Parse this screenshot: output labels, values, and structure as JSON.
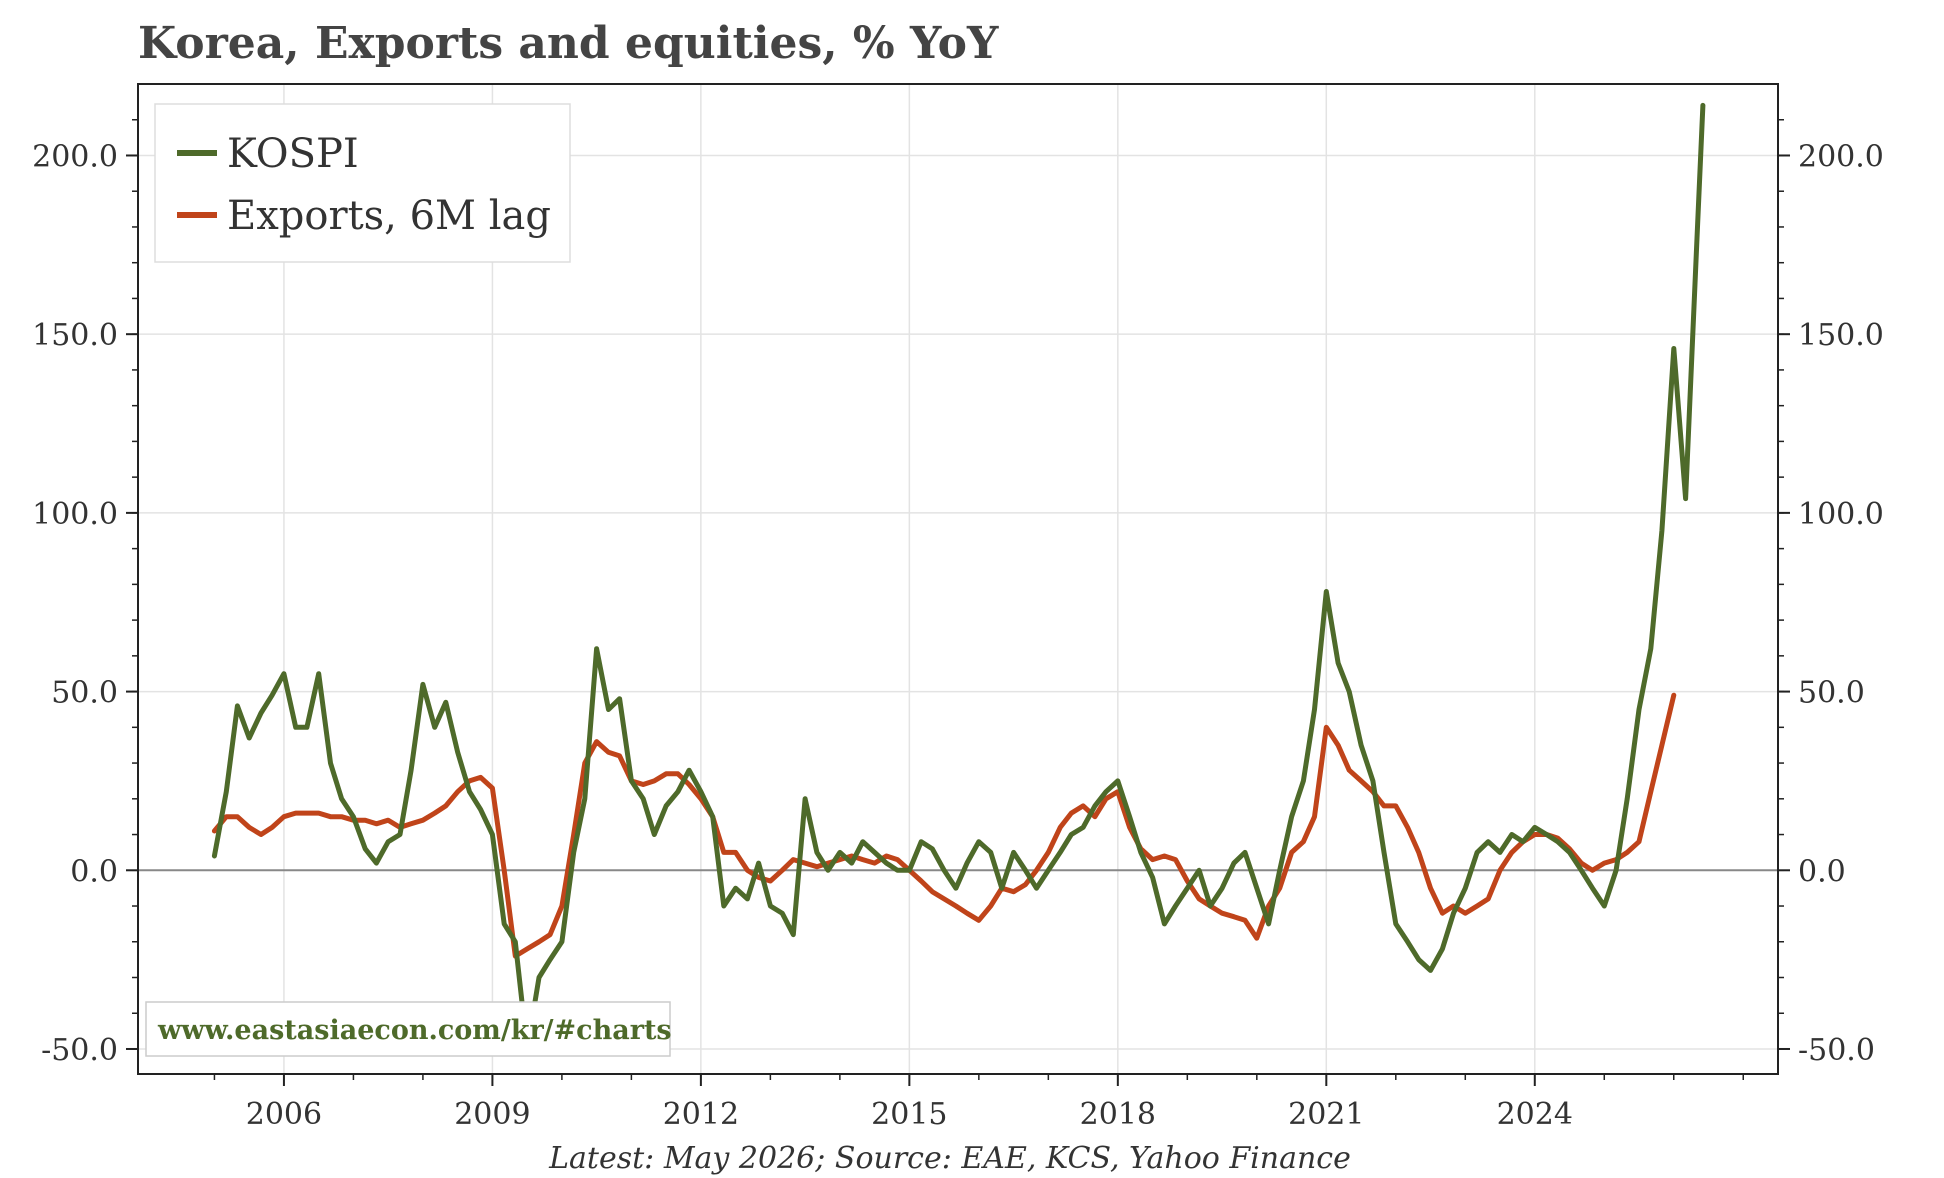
{
  "chart_data": {
    "type": "line",
    "title": "Korea, Exports and equities, % YoY",
    "source_note": "Latest: May 2026; Source: EAE, KCS, Yahoo Finance",
    "watermark": "www.eastasiaecon.com/kr/#charts",
    "xlabel": "",
    "ylabel": "",
    "xlim": [
      2003.9,
      2027.5
    ],
    "ylim": [
      -57,
      220
    ],
    "x_ticks": [
      2006,
      2009,
      2012,
      2015,
      2018,
      2021,
      2024
    ],
    "x_tick_labels": [
      "2006",
      "2009",
      "2012",
      "2015",
      "2018",
      "2021",
      "2024"
    ],
    "y_ticks": [
      -50,
      0,
      50,
      100,
      150,
      200
    ],
    "y_tick_labels": [
      "-50.0",
      "0.0",
      "50.0",
      "100.0",
      "150.0",
      "200.0"
    ],
    "grid": true,
    "legend_position": "top-left",
    "colors": {
      "kospi": "#4e6a2a",
      "exports": "#c0441a",
      "zero_line": "#888888",
      "grid": "#e3e3e3",
      "watermark": "#4e6a2a"
    },
    "series": [
      {
        "name": "KOSPI",
        "color": "#4e6a2a",
        "points": [
          [
            2005.0,
            4
          ],
          [
            2005.17,
            22
          ],
          [
            2005.33,
            46
          ],
          [
            2005.5,
            37
          ],
          [
            2005.67,
            44
          ],
          [
            2005.83,
            49
          ],
          [
            2006.0,
            55
          ],
          [
            2006.17,
            40
          ],
          [
            2006.33,
            40
          ],
          [
            2006.5,
            55
          ],
          [
            2006.67,
            30
          ],
          [
            2006.83,
            20
          ],
          [
            2007.0,
            15
          ],
          [
            2007.17,
            6
          ],
          [
            2007.33,
            2
          ],
          [
            2007.5,
            8
          ],
          [
            2007.67,
            10
          ],
          [
            2007.83,
            28
          ],
          [
            2008.0,
            52
          ],
          [
            2008.17,
            40
          ],
          [
            2008.33,
            47
          ],
          [
            2008.5,
            33
          ],
          [
            2008.67,
            22
          ],
          [
            2008.83,
            17
          ],
          [
            2009.0,
            10
          ],
          [
            2009.17,
            -15
          ],
          [
            2009.33,
            -20
          ],
          [
            2009.5,
            -50
          ],
          [
            2009.67,
            -30
          ],
          [
            2009.83,
            -25
          ],
          [
            2010.0,
            -20
          ],
          [
            2010.17,
            5
          ],
          [
            2010.33,
            20
          ],
          [
            2010.5,
            62
          ],
          [
            2010.67,
            45
          ],
          [
            2010.83,
            48
          ],
          [
            2011.0,
            25
          ],
          [
            2011.17,
            20
          ],
          [
            2011.33,
            10
          ],
          [
            2011.5,
            18
          ],
          [
            2011.67,
            22
          ],
          [
            2011.83,
            28
          ],
          [
            2012.0,
            22
          ],
          [
            2012.17,
            15
          ],
          [
            2012.33,
            -10
          ],
          [
            2012.5,
            -5
          ],
          [
            2012.67,
            -8
          ],
          [
            2012.83,
            2
          ],
          [
            2013.0,
            -10
          ],
          [
            2013.17,
            -12
          ],
          [
            2013.33,
            -18
          ],
          [
            2013.5,
            20
          ],
          [
            2013.67,
            5
          ],
          [
            2013.83,
            0
          ],
          [
            2014.0,
            5
          ],
          [
            2014.17,
            2
          ],
          [
            2014.33,
            8
          ],
          [
            2014.5,
            5
          ],
          [
            2014.67,
            2
          ],
          [
            2014.83,
            0
          ],
          [
            2015.0,
            0
          ],
          [
            2015.17,
            8
          ],
          [
            2015.33,
            6
          ],
          [
            2015.5,
            0
          ],
          [
            2015.67,
            -5
          ],
          [
            2015.83,
            2
          ],
          [
            2016.0,
            8
          ],
          [
            2016.17,
            5
          ],
          [
            2016.33,
            -5
          ],
          [
            2016.5,
            5
          ],
          [
            2016.67,
            0
          ],
          [
            2016.83,
            -5
          ],
          [
            2017.0,
            0
          ],
          [
            2017.17,
            5
          ],
          [
            2017.33,
            10
          ],
          [
            2017.5,
            12
          ],
          [
            2017.67,
            18
          ],
          [
            2017.83,
            22
          ],
          [
            2018.0,
            25
          ],
          [
            2018.17,
            15
          ],
          [
            2018.33,
            5
          ],
          [
            2018.5,
            -2
          ],
          [
            2018.67,
            -15
          ],
          [
            2018.83,
            -10
          ],
          [
            2019.0,
            -5
          ],
          [
            2019.17,
            0
          ],
          [
            2019.33,
            -10
          ],
          [
            2019.5,
            -5
          ],
          [
            2019.67,
            2
          ],
          [
            2019.83,
            5
          ],
          [
            2020.0,
            -5
          ],
          [
            2020.17,
            -15
          ],
          [
            2020.33,
            0
          ],
          [
            2020.5,
            15
          ],
          [
            2020.67,
            25
          ],
          [
            2020.83,
            45
          ],
          [
            2021.0,
            78
          ],
          [
            2021.17,
            58
          ],
          [
            2021.33,
            50
          ],
          [
            2021.5,
            35
          ],
          [
            2021.67,
            25
          ],
          [
            2021.83,
            5
          ],
          [
            2022.0,
            -15
          ],
          [
            2022.17,
            -20
          ],
          [
            2022.33,
            -25
          ],
          [
            2022.5,
            -28
          ],
          [
            2022.67,
            -22
          ],
          [
            2022.83,
            -12
          ],
          [
            2023.0,
            -5
          ],
          [
            2023.17,
            5
          ],
          [
            2023.33,
            8
          ],
          [
            2023.5,
            5
          ],
          [
            2023.67,
            10
          ],
          [
            2023.83,
            8
          ],
          [
            2024.0,
            12
          ],
          [
            2024.17,
            10
          ],
          [
            2024.33,
            8
          ],
          [
            2024.5,
            5
          ],
          [
            2024.67,
            0
          ],
          [
            2024.83,
            -5
          ],
          [
            2025.0,
            -10
          ],
          [
            2025.17,
            0
          ],
          [
            2025.33,
            20
          ],
          [
            2025.5,
            45
          ],
          [
            2025.67,
            62
          ],
          [
            2025.83,
            95
          ],
          [
            2026.0,
            146
          ],
          [
            2026.17,
            104
          ],
          [
            2026.33,
            175
          ],
          [
            2026.42,
            214
          ]
        ]
      },
      {
        "name": "Exports, 6M lag",
        "color": "#c0441a",
        "points": [
          [
            2005.0,
            11
          ],
          [
            2005.17,
            15
          ],
          [
            2005.33,
            15
          ],
          [
            2005.5,
            12
          ],
          [
            2005.67,
            10
          ],
          [
            2005.83,
            12
          ],
          [
            2006.0,
            15
          ],
          [
            2006.17,
            16
          ],
          [
            2006.33,
            16
          ],
          [
            2006.5,
            16
          ],
          [
            2006.67,
            15
          ],
          [
            2006.83,
            15
          ],
          [
            2007.0,
            14
          ],
          [
            2007.17,
            14
          ],
          [
            2007.33,
            13
          ],
          [
            2007.5,
            14
          ],
          [
            2007.67,
            12
          ],
          [
            2007.83,
            13
          ],
          [
            2008.0,
            14
          ],
          [
            2008.17,
            16
          ],
          [
            2008.33,
            18
          ],
          [
            2008.5,
            22
          ],
          [
            2008.67,
            25
          ],
          [
            2008.83,
            26
          ],
          [
            2009.0,
            23
          ],
          [
            2009.17,
            0
          ],
          [
            2009.33,
            -24
          ],
          [
            2009.5,
            -22
          ],
          [
            2009.67,
            -20
          ],
          [
            2009.83,
            -18
          ],
          [
            2010.0,
            -10
          ],
          [
            2010.17,
            10
          ],
          [
            2010.33,
            30
          ],
          [
            2010.5,
            36
          ],
          [
            2010.67,
            33
          ],
          [
            2010.83,
            32
          ],
          [
            2011.0,
            25
          ],
          [
            2011.17,
            24
          ],
          [
            2011.33,
            25
          ],
          [
            2011.5,
            27
          ],
          [
            2011.67,
            27
          ],
          [
            2011.83,
            24
          ],
          [
            2012.0,
            20
          ],
          [
            2012.17,
            15
          ],
          [
            2012.33,
            5
          ],
          [
            2012.5,
            5
          ],
          [
            2012.67,
            0
          ],
          [
            2012.83,
            -2
          ],
          [
            2013.0,
            -3
          ],
          [
            2013.17,
            0
          ],
          [
            2013.33,
            3
          ],
          [
            2013.5,
            2
          ],
          [
            2013.67,
            1
          ],
          [
            2013.83,
            2
          ],
          [
            2014.0,
            3
          ],
          [
            2014.17,
            4
          ],
          [
            2014.33,
            3
          ],
          [
            2014.5,
            2
          ],
          [
            2014.67,
            4
          ],
          [
            2014.83,
            3
          ],
          [
            2015.0,
            0
          ],
          [
            2015.17,
            -3
          ],
          [
            2015.33,
            -6
          ],
          [
            2015.5,
            -8
          ],
          [
            2015.67,
            -10
          ],
          [
            2015.83,
            -12
          ],
          [
            2016.0,
            -14
          ],
          [
            2016.17,
            -10
          ],
          [
            2016.33,
            -5
          ],
          [
            2016.5,
            -6
          ],
          [
            2016.67,
            -4
          ],
          [
            2016.83,
            0
          ],
          [
            2017.0,
            5
          ],
          [
            2017.17,
            12
          ],
          [
            2017.33,
            16
          ],
          [
            2017.5,
            18
          ],
          [
            2017.67,
            15
          ],
          [
            2017.83,
            20
          ],
          [
            2018.0,
            22
          ],
          [
            2018.17,
            12
          ],
          [
            2018.33,
            6
          ],
          [
            2018.5,
            3
          ],
          [
            2018.67,
            4
          ],
          [
            2018.83,
            3
          ],
          [
            2019.0,
            -3
          ],
          [
            2019.17,
            -8
          ],
          [
            2019.33,
            -10
          ],
          [
            2019.5,
            -12
          ],
          [
            2019.67,
            -13
          ],
          [
            2019.83,
            -14
          ],
          [
            2020.0,
            -19
          ],
          [
            2020.17,
            -10
          ],
          [
            2020.33,
            -5
          ],
          [
            2020.5,
            5
          ],
          [
            2020.67,
            8
          ],
          [
            2020.83,
            15
          ],
          [
            2021.0,
            40
          ],
          [
            2021.17,
            35
          ],
          [
            2021.33,
            28
          ],
          [
            2021.5,
            25
          ],
          [
            2021.67,
            22
          ],
          [
            2021.83,
            18
          ],
          [
            2022.0,
            18
          ],
          [
            2022.17,
            12
          ],
          [
            2022.33,
            5
          ],
          [
            2022.5,
            -5
          ],
          [
            2022.67,
            -12
          ],
          [
            2022.83,
            -10
          ],
          [
            2023.0,
            -12
          ],
          [
            2023.17,
            -10
          ],
          [
            2023.33,
            -8
          ],
          [
            2023.5,
            0
          ],
          [
            2023.67,
            5
          ],
          [
            2023.83,
            8
          ],
          [
            2024.0,
            10
          ],
          [
            2024.17,
            10
          ],
          [
            2024.33,
            9
          ],
          [
            2024.5,
            6
          ],
          [
            2024.67,
            2
          ],
          [
            2024.83,
            0
          ],
          [
            2025.0,
            2
          ],
          [
            2025.17,
            3
          ],
          [
            2025.33,
            5
          ],
          [
            2025.5,
            8
          ],
          [
            2025.67,
            22
          ],
          [
            2025.83,
            35
          ],
          [
            2026.0,
            49
          ]
        ]
      }
    ]
  }
}
